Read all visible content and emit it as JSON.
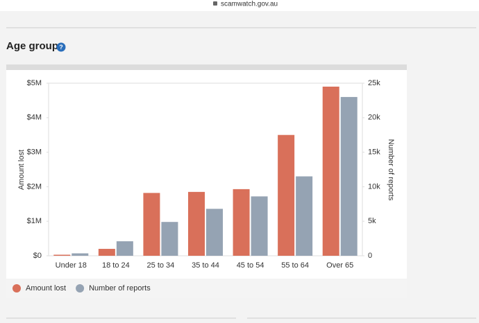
{
  "page": {
    "url": "scamwatch.gov.au",
    "heading": "Age group",
    "help_icon": "?"
  },
  "chart_data": {
    "type": "bar",
    "categories": [
      "Under 18",
      "18 to 24",
      "25 to 34",
      "35 to 44",
      "45 to 54",
      "55 to 64",
      "Over 65"
    ],
    "y_label": "Amount lost",
    "y2_label": "Number of reports",
    "series": [
      {
        "name": "Amount lost",
        "color": "#d9705a",
        "values": [
          30000,
          200000,
          1820000,
          1850000,
          1930000,
          3500000,
          4900000
        ]
      },
      {
        "name": "Number of reports",
        "color": "#95a3b3",
        "axis": "y2",
        "values": [
          350,
          2100,
          4900,
          6800,
          8600,
          11500,
          23000
        ]
      }
    ],
    "ylim": [
      0,
      5000000
    ],
    "yticks": [
      {
        "value": 0,
        "label": "$0"
      },
      {
        "value": 1000000,
        "label": "$1M"
      },
      {
        "value": 2000000,
        "label": "$2M"
      },
      {
        "value": 3000000,
        "label": "$3M"
      },
      {
        "value": 4000000,
        "label": "$4M"
      },
      {
        "value": 5000000,
        "label": "$5M"
      }
    ],
    "y2lim": [
      0,
      25000
    ],
    "y2ticks": [
      0,
      {
        "value": 5000,
        "label": "5k"
      },
      {
        "value": 10000,
        "label": "10k"
      },
      {
        "value": 15000,
        "label": "15k"
      },
      {
        "value": 20000,
        "label": "20k"
      },
      {
        "value": 25000,
        "label": "25k"
      }
    ],
    "grid": false,
    "legend": "bottom-left"
  }
}
